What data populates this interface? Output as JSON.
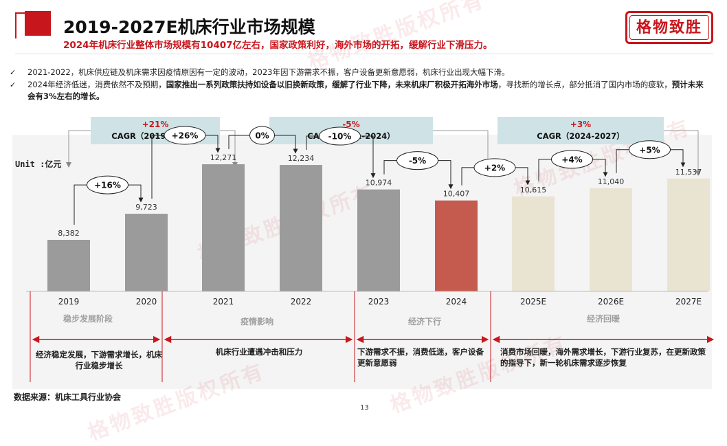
{
  "header": {
    "title": "2019-2027E机床行业市场规模",
    "subtitle": "2024年机床行业整体市场规模有10407亿左右，国家政策利好，海外市场的开拓，缓解行业下滑压力。",
    "stamp": "格物致胜",
    "watermark": "格物致胜版权所有"
  },
  "bullets": [
    {
      "normal": "2021-2022，机床供应链及机床需求因疫情原因有一定的波动，2023年因下游需求不振，客户设备更新意愿弱，机床行业出现大幅下滑。",
      "bold": "",
      "tail": ""
    },
    {
      "normal": "2024年经济低迷，消费依然不及预期，",
      "bold": "国家推出一系列政策扶持如设备以旧换新政策，缓解了行业下降，未来机床厂积极开拓海外市场",
      "tail": "，寻找新的增长点，部分抵消了国内市场的疲软，",
      "bold2": "预计未来会有3%左右的增长。"
    }
  ],
  "cagr": [
    {
      "value": "+21%",
      "label": "CAGR（2019-2021）"
    },
    {
      "value": "-5%",
      "label": "CAGR（2021-2024）"
    },
    {
      "value": "+3%",
      "label": "CAGR（2024-2027）"
    }
  ],
  "colors": {
    "accent": "#c8161d",
    "gray_bar": "#9b9b9b",
    "highlight_bar": "#c55a4e",
    "forecast_bar": "#e9e4d2",
    "cagr_bg": "#cfe3e6"
  },
  "chart_data": {
    "type": "bar",
    "unit_label": "Unit :亿元",
    "categories": [
      "2019",
      "2020",
      "2021",
      "2022",
      "2023",
      "2024",
      "2025E",
      "2026E",
      "2027E"
    ],
    "values": [
      8382,
      9723,
      12271,
      12234,
      10974,
      10407,
      10615,
      11040,
      11537
    ],
    "value_labels": [
      "8,382",
      "9,723",
      "12,271",
      "12,234",
      "10,974",
      "10,407",
      "10,615",
      "11,040",
      "11,537"
    ],
    "growth_labels": [
      "+16%",
      "+26%",
      "0%",
      "-10%",
      "-5%",
      "+2%",
      "+4%",
      "+5%"
    ],
    "ylim": [
      0,
      14000
    ]
  },
  "phases": [
    {
      "name": "稳步发展阶段",
      "desc": "经济稳定发展，下游需求增长，机床行业稳步增长"
    },
    {
      "name": "疫情影响",
      "desc": "机床行业遭遇冲击和压力"
    },
    {
      "name": "经济下行",
      "desc": "下游需求不振，消费低迷，客户设备更新意愿弱"
    },
    {
      "name": "经济回暖",
      "desc": "消费市场回暖，海外需求增长，下游行业复苏，在更新政策的指导下，新一轮机床需求逐步恢复"
    }
  ],
  "footer": {
    "source": "数据来源：机床工具行业协会",
    "page": "13"
  }
}
